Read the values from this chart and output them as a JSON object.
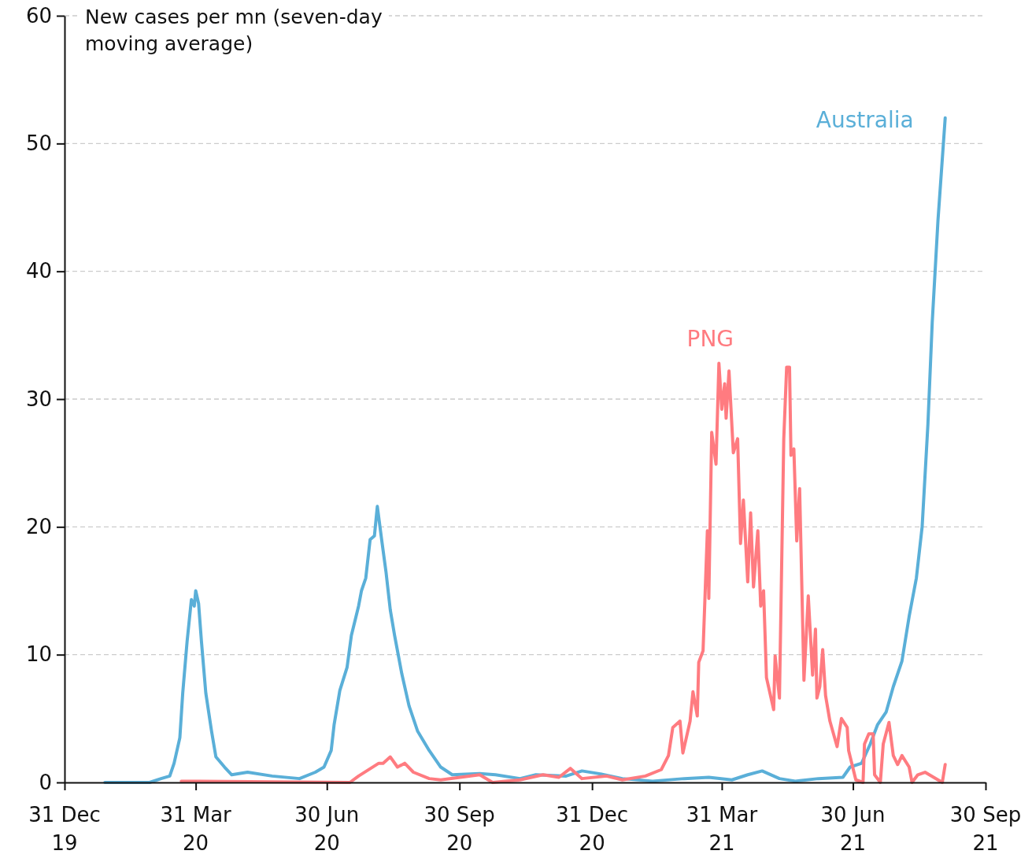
{
  "chart_data": {
    "type": "line",
    "ylabel": "New cases per mn (seven-day moving average)",
    "xlim": [
      "2019-12-31",
      "2021-09-30"
    ],
    "xticks": [
      {
        "value": "2019-12-31",
        "label": "31 Dec 19"
      },
      {
        "value": "2020-03-31",
        "label": "31 Mar 20"
      },
      {
        "value": "2020-06-30",
        "label": "30 Jun 20"
      },
      {
        "value": "2020-09-30",
        "label": "30 Sep 20"
      },
      {
        "value": "2020-12-31",
        "label": "31 Dec 20"
      },
      {
        "value": "2021-03-31",
        "label": "31 Mar 21"
      },
      {
        "value": "2021-06-30",
        "label": "30 Jun 21"
      },
      {
        "value": "2021-09-30",
        "label": "30 Sep 21"
      }
    ],
    "ylim": [
      0,
      60
    ],
    "yticks": [
      0,
      10,
      20,
      30,
      40,
      50,
      60
    ],
    "grid": "y",
    "legend": false,
    "marker": "none",
    "line_style": "solid",
    "series": [
      {
        "name": "Australia",
        "color": "#5aafd8",
        "x": [
          "2020-01-28",
          "2020-02-28",
          "2020-03-07",
          "2020-03-13",
          "2020-03-16",
          "2020-03-20",
          "2020-03-22",
          "2020-03-25",
          "2020-03-28",
          "2020-03-30",
          "2020-03-31",
          "2020-04-02",
          "2020-04-04",
          "2020-04-07",
          "2020-04-11",
          "2020-04-14",
          "2020-04-20",
          "2020-04-25",
          "2020-05-06",
          "2020-05-23",
          "2020-06-11",
          "2020-06-22",
          "2020-06-28",
          "2020-07-03",
          "2020-07-05",
          "2020-07-09",
          "2020-07-14",
          "2020-07-17",
          "2020-07-22",
          "2020-07-24",
          "2020-07-27",
          "2020-07-30",
          "2020-08-02",
          "2020-08-04",
          "2020-08-07",
          "2020-08-10",
          "2020-08-13",
          "2020-08-16",
          "2020-08-21",
          "2020-08-26",
          "2020-09-01",
          "2020-09-09",
          "2020-09-17",
          "2020-09-25",
          "2020-10-14",
          "2020-10-25",
          "2020-11-11",
          "2020-11-22",
          "2020-12-13",
          "2020-12-24",
          "2021-01-04",
          "2021-01-21",
          "2021-02-11",
          "2021-03-05",
          "2021-03-22",
          "2021-04-07",
          "2021-04-18",
          "2021-04-28",
          "2021-05-10",
          "2021-05-21",
          "2021-06-06",
          "2021-06-23",
          "2021-06-28",
          "2021-07-06",
          "2021-07-12",
          "2021-07-17",
          "2021-07-23",
          "2021-07-28",
          "2021-08-03",
          "2021-08-08",
          "2021-08-13",
          "2021-08-17",
          "2021-08-21",
          "2021-08-24",
          "2021-08-28",
          "2021-09-02"
        ],
        "values": [
          0,
          0,
          0.3,
          0.5,
          1.5,
          3.5,
          7,
          11,
          14.3,
          13.8,
          15,
          14,
          11,
          7,
          4,
          2,
          1.2,
          0.6,
          0.8,
          0.5,
          0.3,
          0.8,
          1.2,
          2.5,
          4.5,
          7.2,
          9,
          11.5,
          13.8,
          15,
          16,
          19,
          19.3,
          21.6,
          19,
          16.5,
          13.5,
          11.5,
          8.5,
          6,
          4,
          2.5,
          1.2,
          0.6,
          0.7,
          0.6,
          0.3,
          0.6,
          0.5,
          0.9,
          0.7,
          0.3,
          0.1,
          0.3,
          0.4,
          0.2,
          0.6,
          0.9,
          0.3,
          0.1,
          0.3,
          0.4,
          1.2,
          1.5,
          3,
          4.5,
          5.5,
          7.5,
          9.5,
          13,
          16,
          20,
          28,
          36,
          44,
          52
        ]
      },
      {
        "name": "PNG",
        "color": "#ff7b80",
        "x": [
          "2020-03-21",
          "2020-07-16",
          "2020-07-22",
          "2020-08-05",
          "2020-08-08",
          "2020-08-13",
          "2020-08-18",
          "2020-08-23",
          "2020-08-29",
          "2020-09-09",
          "2020-09-17",
          "2020-10-14",
          "2020-10-23",
          "2020-11-11",
          "2020-11-27",
          "2020-12-08",
          "2020-12-16",
          "2020-12-24",
          "2021-01-10",
          "2021-01-21",
          "2021-02-06",
          "2021-02-17",
          "2021-02-22",
          "2021-02-25",
          "2021-03-02",
          "2021-03-04",
          "2021-03-09",
          "2021-03-11",
          "2021-03-14",
          "2021-03-15",
          "2021-03-18",
          "2021-03-21",
          "2021-03-22",
          "2021-03-24",
          "2021-03-27",
          "2021-03-29",
          "2021-03-31",
          "2021-04-02",
          "2021-04-03",
          "2021-04-05",
          "2021-04-08",
          "2021-04-11",
          "2021-04-13",
          "2021-04-15",
          "2021-04-18",
          "2021-04-20",
          "2021-04-22",
          "2021-04-25",
          "2021-04-27",
          "2021-04-29",
          "2021-05-01",
          "2021-05-06",
          "2021-05-07",
          "2021-05-10",
          "2021-05-13",
          "2021-05-15",
          "2021-05-17",
          "2021-05-18",
          "2021-05-20",
          "2021-05-22",
          "2021-05-24",
          "2021-05-27",
          "2021-05-30",
          "2021-06-02",
          "2021-06-04",
          "2021-06-05",
          "2021-06-07",
          "2021-06-09",
          "2021-06-11",
          "2021-06-14",
          "2021-06-19",
          "2021-06-22",
          "2021-06-26",
          "2021-06-27",
          "2021-07-02",
          "2021-07-07",
          "2021-07-08",
          "2021-07-11",
          "2021-07-14",
          "2021-07-15",
          "2021-07-19",
          "2021-07-21",
          "2021-07-25",
          "2021-07-28",
          "2021-07-31",
          "2021-08-03",
          "2021-08-08",
          "2021-08-10",
          "2021-08-14",
          "2021-08-19",
          "2021-08-25",
          "2021-08-31",
          "2021-09-02"
        ],
        "values": [
          0.1,
          0,
          0.5,
          1.5,
          1.5,
          2,
          1.2,
          1.5,
          0.8,
          0.3,
          0.2,
          0.6,
          0,
          0.2,
          0.6,
          0.4,
          1.1,
          0.3,
          0.5,
          0.2,
          0.5,
          1,
          2.1,
          4.3,
          4.8,
          2.3,
          4.8,
          7.1,
          5.2,
          9.4,
          10.3,
          19.7,
          14.4,
          27.4,
          24.9,
          32.8,
          29.2,
          31.2,
          28.5,
          32.2,
          25.8,
          26.9,
          18.7,
          22.1,
          15.7,
          21.1,
          15.3,
          19.7,
          13.8,
          15,
          8.2,
          5.7,
          9.9,
          6.6,
          26.9,
          32.5,
          32.5,
          25.6,
          26.1,
          18.9,
          23,
          8,
          14.6,
          8.4,
          12,
          6.6,
          7.5,
          10.4,
          6.8,
          4.8,
          2.8,
          5,
          4.3,
          2.5,
          0.2,
          0,
          3,
          3.8,
          3.8,
          0.6,
          0,
          3,
          4.7,
          2.1,
          1.4,
          2.1,
          1.2,
          0,
          0.6,
          0.8,
          0.4,
          0,
          1.4
        ]
      }
    ]
  }
}
